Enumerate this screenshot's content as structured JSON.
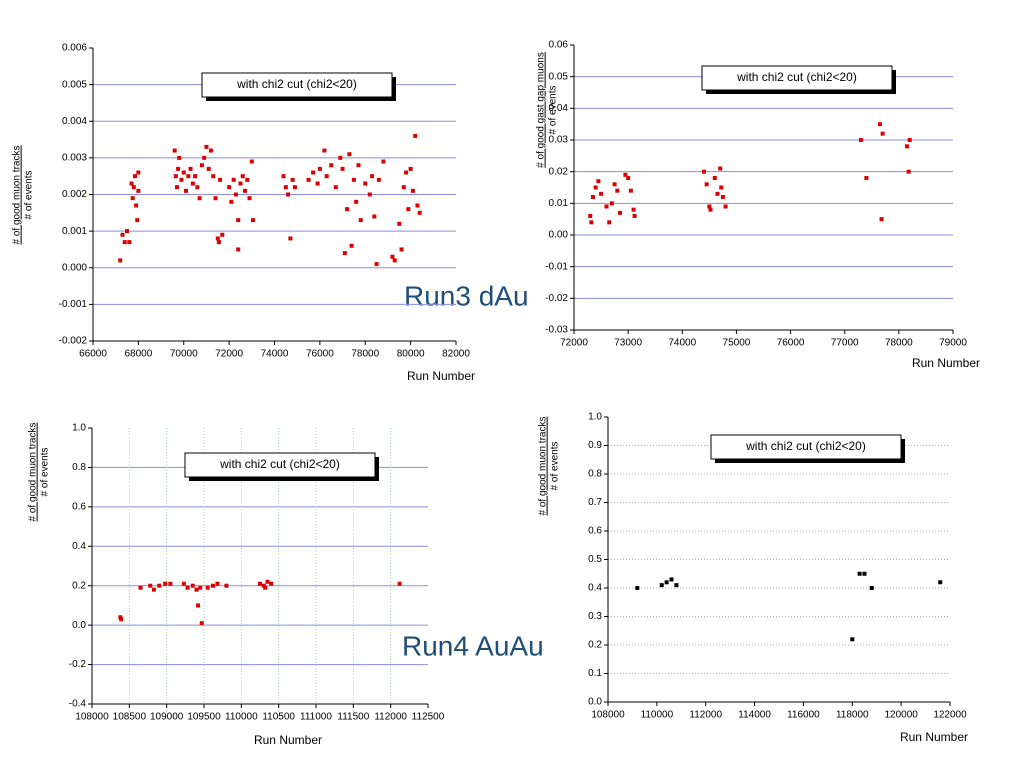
{
  "slide_labels": [
    "Run3 dAu",
    "Run4 AuAu"
  ],
  "chart_data": [
    {
      "type": "scatter",
      "annotation": "with chi2 cut (chi2<20)",
      "xlabel": "Run Number",
      "ylabel": [
        "# of good muon tracks",
        "# of events"
      ],
      "xlim": [
        66000,
        82000
      ],
      "xticks": [
        66000,
        68000,
        70000,
        72000,
        74000,
        76000,
        78000,
        80000,
        82000
      ],
      "ylim": [
        -0.002,
        0.006
      ],
      "yticks": [
        0.006,
        0.005,
        0.004,
        0.003,
        0.002,
        0.001,
        {
          "value": 0,
          "label": "0.000"
        },
        -0.001,
        -0.002
      ],
      "grid": true,
      "grid_color": "#8c8ce6",
      "grid_style": "solid",
      "xgrid": false,
      "color": "#dd0000",
      "x": [
        67200,
        67300,
        67400,
        67500,
        67600,
        67700,
        67750,
        67800,
        67850,
        67900,
        67950,
        68000,
        68000,
        69600,
        69650,
        69700,
        69750,
        69800,
        69900,
        70000,
        70100,
        70200,
        70300,
        70400,
        70500,
        70600,
        70700,
        70800,
        70900,
        71000,
        71100,
        71200,
        71300,
        71400,
        71500,
        71550,
        71600,
        71700,
        72000,
        72100,
        72200,
        72300,
        72400,
        72500,
        72600,
        72700,
        72800,
        72900,
        73000,
        73050,
        72400,
        74400,
        74500,
        74600,
        74700,
        74800,
        74900,
        75500,
        75700,
        75900,
        76000,
        76200,
        76300,
        76500,
        76700,
        76900,
        77000,
        77100,
        77200,
        77300,
        77400,
        77500,
        77600,
        77700,
        77800,
        78000,
        78200,
        78300,
        78400,
        78500,
        78600,
        78800,
        79200,
        79300,
        79500,
        79600,
        79700,
        79800,
        79900,
        80000,
        80100,
        80200,
        80300,
        80400
      ],
      "values": [
        0.0002,
        0.0009,
        0.0007,
        0.001,
        0.0007,
        0.0023,
        0.0019,
        0.0022,
        0.0025,
        0.0017,
        0.0013,
        0.0026,
        0.0021,
        0.0032,
        0.0025,
        0.0022,
        0.0027,
        0.003,
        0.0024,
        0.0026,
        0.0021,
        0.0025,
        0.0027,
        0.0023,
        0.0025,
        0.0022,
        0.0019,
        0.0028,
        0.003,
        0.0033,
        0.0027,
        0.0032,
        0.0025,
        0.0019,
        0.0008,
        0.0007,
        0.0024,
        0.0009,
        0.0022,
        0.0018,
        0.0024,
        0.002,
        0.0013,
        0.0023,
        0.0025,
        0.0021,
        0.0024,
        0.0019,
        0.0029,
        0.0013,
        0.0005,
        0.0025,
        0.0022,
        0.002,
        0.0008,
        0.0024,
        0.0022,
        0.0024,
        0.0026,
        0.0023,
        0.0027,
        0.0032,
        0.0025,
        0.0028,
        0.0022,
        0.003,
        0.0027,
        0.0004,
        0.0016,
        0.0031,
        0.0006,
        0.0024,
        0.0018,
        0.0028,
        0.0013,
        0.0023,
        0.002,
        0.0025,
        0.0014,
        0.0001,
        0.0024,
        0.0029,
        0.0003,
        0.0002,
        0.0012,
        0.0005,
        0.0022,
        0.0026,
        0.0016,
        0.0027,
        0.0021,
        0.0036,
        0.0017,
        0.0015
      ]
    },
    {
      "type": "scatter",
      "annotation": "with chi2 cut (chi2<20)",
      "xlabel": "Run Number",
      "ylabel": [
        "# of good gast gap muons",
        "# of events"
      ],
      "xlim": [
        72000,
        79000
      ],
      "xticks": [
        72000,
        73000,
        74000,
        75000,
        76000,
        77000,
        78000,
        79000
      ],
      "ylim": [
        -0.03,
        0.06
      ],
      "yticks": [
        0.06,
        0.05,
        0.04,
        0.03,
        0.02,
        0.01,
        {
          "value": 0,
          "label": "0.00"
        },
        -0.01,
        -0.02,
        -0.03
      ],
      "grid": true,
      "grid_color": "#8c8ce6",
      "grid_style": "solid",
      "xgrid": false,
      "color": "#dd0000",
      "x": [
        72300,
        72320,
        72350,
        72400,
        72450,
        72500,
        72600,
        72650,
        72700,
        72750,
        72800,
        72850,
        72950,
        73000,
        73050,
        73100,
        73120,
        74400,
        74450,
        74500,
        74520,
        74600,
        74650,
        74700,
        74720,
        74750,
        74800,
        77300,
        77400,
        77650,
        77700,
        77680,
        78150,
        78200,
        78180
      ],
      "values": [
        0.006,
        0.004,
        0.012,
        0.015,
        0.017,
        0.013,
        0.009,
        0.004,
        0.01,
        0.016,
        0.014,
        0.007,
        0.019,
        0.018,
        0.014,
        0.008,
        0.006,
        0.02,
        0.016,
        0.009,
        0.008,
        0.018,
        0.013,
        0.021,
        0.015,
        0.012,
        0.009,
        0.03,
        0.018,
        0.035,
        0.032,
        0.005,
        0.028,
        0.03,
        0.02
      ]
    },
    {
      "type": "scatter",
      "annotation": "with chi2 cut (chi2<20)",
      "xlabel": "Run Number",
      "ylabel": [
        "# of good muon tracks",
        "# of events"
      ],
      "xlim": [
        108000,
        112500
      ],
      "xticks": [
        108000,
        108500,
        109000,
        109500,
        110000,
        110500,
        111000,
        111500,
        112000,
        112500
      ],
      "ylim": [
        -0.4,
        1
      ],
      "yticks": [
        {
          "value": 1,
          "label": "1.0"
        },
        0.8,
        0.6,
        0.4,
        0.2,
        {
          "value": 0,
          "label": "0.0"
        },
        -0.2,
        -0.4
      ],
      "grid": true,
      "grid_color": "#8c8ce6",
      "grid_style": "solid",
      "xgrid": true,
      "xgrid_color": "#9ee09e",
      "color": "#dd0000",
      "x": [
        108380,
        108390,
        108650,
        108780,
        108830,
        108900,
        108980,
        109050,
        109230,
        109280,
        109350,
        109400,
        109420,
        109450,
        109470,
        109550,
        109620,
        109680,
        109800,
        110250,
        110300,
        110320,
        110350,
        110400,
        112120
      ],
      "values": [
        0.04,
        0.03,
        0.19,
        0.2,
        0.18,
        0.2,
        0.21,
        0.21,
        0.21,
        0.19,
        0.2,
        0.18,
        0.1,
        0.19,
        0.01,
        0.19,
        0.2,
        0.21,
        0.2,
        0.21,
        0.2,
        0.19,
        0.22,
        0.21,
        0.21
      ]
    },
    {
      "type": "scatter",
      "annotation": "with chi2 cut (chi2<20)",
      "xlabel": "Run Number",
      "ylabel": [
        "# of good muon tracks",
        "# of events"
      ],
      "xlim": [
        108000,
        122000
      ],
      "xticks": [
        108000,
        110000,
        112000,
        114000,
        116000,
        118000,
        120000,
        122000
      ],
      "ylim": [
        0,
        1
      ],
      "yticks": [
        {
          "value": 1,
          "label": "1.0"
        },
        0.9,
        0.8,
        0.7,
        0.6,
        0.5,
        0.4,
        0.3,
        0.2,
        0.1,
        {
          "value": 0,
          "label": "0.0"
        }
      ],
      "grid": true,
      "grid_color": "#aaaaaa",
      "grid_style": "dotted",
      "xgrid": false,
      "color": "#000000",
      "x": [
        109200,
        110200,
        110400,
        110600,
        110800,
        118000,
        118300,
        118500,
        118800,
        121600
      ],
      "values": [
        0.4,
        0.41,
        0.42,
        0.43,
        0.41,
        0.22,
        0.45,
        0.45,
        0.4,
        0.42
      ]
    }
  ]
}
